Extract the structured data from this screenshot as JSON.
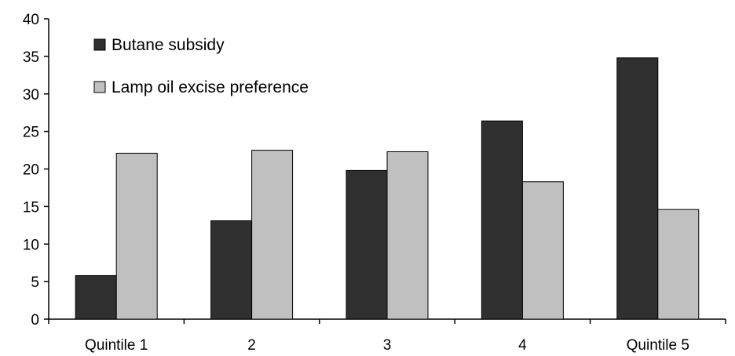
{
  "chart_data": {
    "type": "bar",
    "title": "",
    "xlabel": "",
    "ylabel": "",
    "categories": [
      "Quintile 1",
      "2",
      "3",
      "4",
      "Quintile 5"
    ],
    "series": [
      {
        "name": "Butane subsidy",
        "values": [
          5.8,
          13.1,
          19.8,
          26.4,
          34.8
        ],
        "color": "#303030"
      },
      {
        "name": "Lamp oil excise preference",
        "values": [
          22.1,
          22.5,
          22.3,
          18.3,
          14.6
        ],
        "color": "#c0c0c0"
      }
    ],
    "ylim": [
      0,
      40
    ],
    "yticks": [
      "0",
      "5",
      "10",
      "15",
      "20",
      "25",
      "30",
      "35",
      "40"
    ],
    "grid": false,
    "legend_position": "top-left"
  }
}
